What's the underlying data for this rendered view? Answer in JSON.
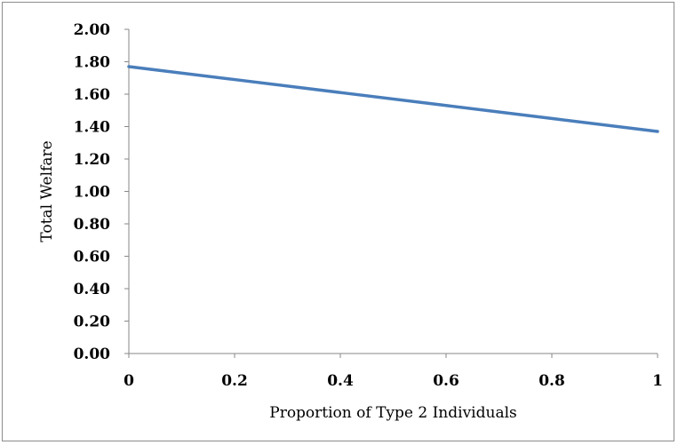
{
  "chart_data": {
    "type": "line",
    "xlabel": "Proportion of Type 2 Individuals",
    "ylabel": "Total Welfare",
    "xlim": [
      0,
      1
    ],
    "ylim": [
      0,
      2
    ],
    "x_ticks": [
      "0",
      "0.2",
      "0.4",
      "0.6",
      "0.8",
      "1"
    ],
    "y_ticks": [
      "0.00",
      "0.20",
      "0.40",
      "0.60",
      "0.80",
      "1.00",
      "1.20",
      "1.40",
      "1.60",
      "1.80",
      "2.00"
    ],
    "grid": false,
    "legend": "none",
    "series": [
      {
        "x": [
          0,
          0.2,
          0.4,
          0.6,
          0.8,
          1
        ],
        "y": [
          1.77,
          1.69,
          1.61,
          1.53,
          1.45,
          1.37
        ],
        "color": "#4a7ebb"
      }
    ]
  }
}
